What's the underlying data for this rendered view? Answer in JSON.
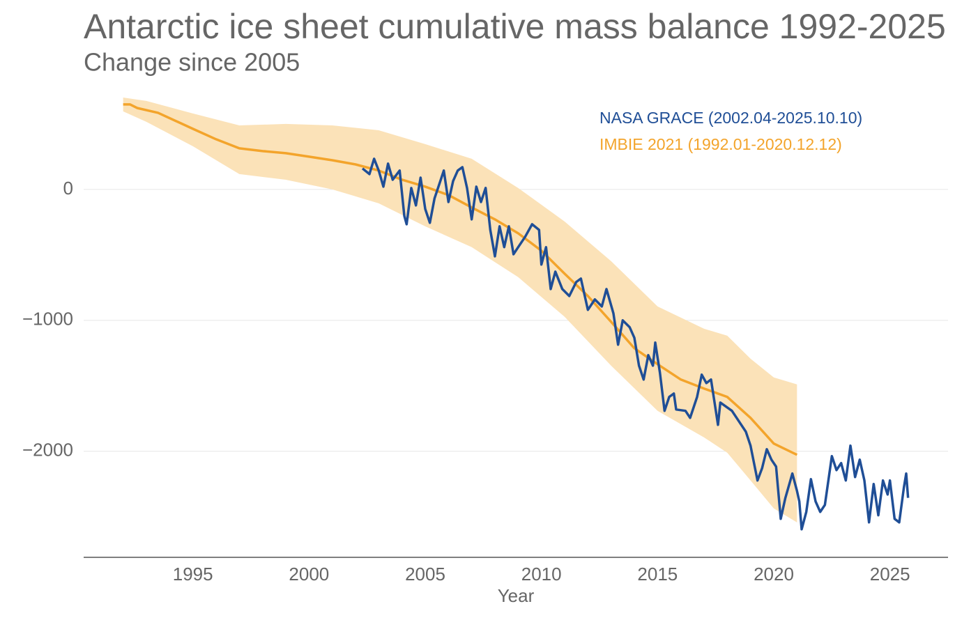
{
  "chart_data": {
    "type": "line",
    "title": "Antarctic ice sheet cumulative mass balance 1992-2025",
    "subtitle": "Change since 2005",
    "x_label": "Year",
    "xlim": [
      1990.3,
      2027.5
    ],
    "ylim": [
      -2810,
      755
    ],
    "xticks": [
      1995,
      2000,
      2005,
      2010,
      2015,
      2020,
      2025
    ],
    "yticks": [
      0,
      {
        "value": -1000,
        "label": "−1000"
      },
      {
        "value": -2000,
        "label": "−2000"
      }
    ],
    "grid": true,
    "series": [
      {
        "name": "IMBIE 2021 (1992.01-2020.12.12)",
        "color": "#f3a42b",
        "x": [
          1992.0,
          1992.3,
          1992.6,
          1993.5,
          1995,
          1996,
          1997,
          1998,
          1999,
          2000,
          2001,
          2002,
          2003,
          2004,
          2005,
          2006,
          2007,
          2008,
          2009,
          2010,
          2011,
          2012,
          2013,
          2014,
          2015,
          2016,
          2017,
          2018,
          2019,
          2020,
          2021
        ],
        "values": [
          649,
          649,
          622,
          585,
          463,
          383,
          314,
          293,
          277,
          250,
          223,
          191,
          144,
          74,
          21,
          -43,
          -138,
          -229,
          -335,
          -468,
          -644,
          -814,
          -1011,
          -1213,
          -1335,
          -1452,
          -1521,
          -1585,
          -1745,
          -1941,
          -2027
        ],
        "band": {
          "color": "#fbe2b8",
          "x": [
            1992,
            1993,
            1995,
            1997,
            1999,
            2001,
            2003,
            2005,
            2007,
            2009,
            2011,
            2013,
            2015,
            2017,
            2018,
            2019,
            2020,
            2021
          ],
          "upper": [
            702,
            676,
            580,
            489,
            500,
            489,
            452,
            346,
            234,
            11,
            -245,
            -548,
            -894,
            -1064,
            -1117,
            -1293,
            -1436,
            -1489
          ],
          "lower": [
            596,
            516,
            330,
            117,
            74,
            0,
            -106,
            -282,
            -441,
            -670,
            -973,
            -1346,
            -1691,
            -1894,
            -2011,
            -2223,
            -2436,
            -2543
          ]
        }
      },
      {
        "name": "NASA GRACE (2002.04-2025.10.10)",
        "color": "#1f4e96",
        "x": [
          2002.3,
          2002.6,
          2002.8,
          2003.0,
          2003.2,
          2003.4,
          2003.6,
          2003.9,
          2004.1,
          2004.2,
          2004.4,
          2004.6,
          2004.8,
          2005.0,
          2005.2,
          2005.4,
          2005.6,
          2005.8,
          2006.0,
          2006.2,
          2006.4,
          2006.6,
          2006.8,
          2007.0,
          2007.2,
          2007.4,
          2007.6,
          2007.8,
          2008.0,
          2008.2,
          2008.4,
          2008.6,
          2008.8,
          2009.0,
          2009.3,
          2009.6,
          2009.9,
          2010.0,
          2010.2,
          2010.4,
          2010.6,
          2010.9,
          2011.2,
          2011.5,
          2011.7,
          2011.9,
          2012.0,
          2012.3,
          2012.6,
          2012.8,
          2013.1,
          2013.3,
          2013.5,
          2013.8,
          2014.0,
          2014.2,
          2014.4,
          2014.6,
          2014.8,
          2014.9,
          2015.1,
          2015.3,
          2015.5,
          2015.7,
          2015.8,
          2016.2,
          2016.4,
          2016.7,
          2016.9,
          2017.1,
          2017.3,
          2017.6,
          2017.7,
          2018.2,
          2018.8,
          2019.0,
          2019.3,
          2019.5,
          2019.7,
          2019.9,
          2020.1,
          2020.3,
          2020.5,
          2020.8,
          2021.0,
          2021.1,
          2021.2,
          2021.4,
          2021.6,
          2021.8,
          2022.0,
          2022.2,
          2022.5,
          2022.7,
          2022.9,
          2023.1,
          2023.3,
          2023.5,
          2023.7,
          2023.9,
          2024.1,
          2024.3,
          2024.5,
          2024.7,
          2024.9,
          2025.0,
          2025.2,
          2025.4,
          2025.6,
          2025.7,
          2025.78
        ],
        "values": [
          160,
          117,
          234,
          144,
          21,
          197,
          74,
          144,
          -202,
          -266,
          11,
          -122,
          90,
          -149,
          -255,
          -69,
          37,
          144,
          -96,
          64,
          144,
          170,
          11,
          -229,
          21,
          -96,
          11,
          -309,
          -511,
          -282,
          -441,
          -282,
          -495,
          -441,
          -362,
          -266,
          -309,
          -574,
          -441,
          -761,
          -628,
          -761,
          -814,
          -707,
          -681,
          -840,
          -920,
          -840,
          -894,
          -761,
          -947,
          -1186,
          -1000,
          -1053,
          -1133,
          -1346,
          -1452,
          -1266,
          -1346,
          -1170,
          -1399,
          -1691,
          -1585,
          -1559,
          -1681,
          -1691,
          -1745,
          -1585,
          -1415,
          -1479,
          -1452,
          -1798,
          -1628,
          -1691,
          -1851,
          -1957,
          -2223,
          -2128,
          -1984,
          -2064,
          -2117,
          -2516,
          -2356,
          -2170,
          -2303,
          -2383,
          -2596,
          -2463,
          -2213,
          -2383,
          -2463,
          -2410,
          -2037,
          -2144,
          -2090,
          -2223,
          -1957,
          -2197,
          -2064,
          -2223,
          -2543,
          -2250,
          -2489,
          -2223,
          -2330,
          -2223,
          -2516,
          -2543,
          -2277,
          -2170,
          -2356
        ]
      }
    ]
  }
}
